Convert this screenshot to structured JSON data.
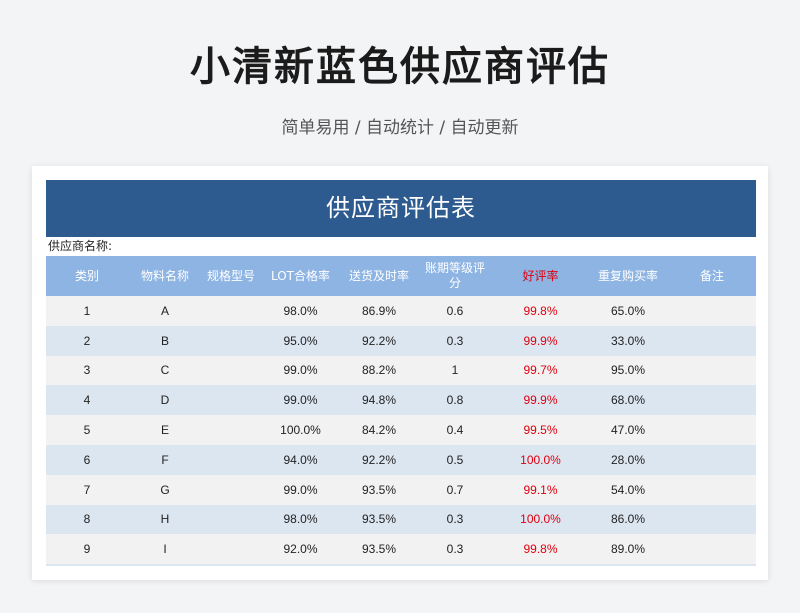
{
  "page": {
    "title": "小清新蓝色供应商评估",
    "subtitle": "简单易用 / 自动统计 / 自动更新"
  },
  "sheet": {
    "title": "供应商评估表",
    "supplier_label": "供应商名称:",
    "header_color": "#2d5a8f",
    "column_header_color": "#8eb4e3",
    "highlight_color": "#e0000f",
    "columns": [
      "类别",
      "物料名称",
      "规格型号",
      "LOT合格率",
      "送货及时率",
      "账期等级评分",
      "好评率",
      "重复购买率",
      "备注"
    ],
    "rows": [
      [
        "1",
        "A",
        "",
        "98.0%",
        "86.9%",
        "0.6",
        "99.8%",
        "65.0%",
        ""
      ],
      [
        "2",
        "B",
        "",
        "95.0%",
        "92.2%",
        "0.3",
        "99.9%",
        "33.0%",
        ""
      ],
      [
        "3",
        "C",
        "",
        "99.0%",
        "88.2%",
        "1",
        "99.7%",
        "95.0%",
        ""
      ],
      [
        "4",
        "D",
        "",
        "99.0%",
        "94.8%",
        "0.8",
        "99.9%",
        "68.0%",
        ""
      ],
      [
        "5",
        "E",
        "",
        "100.0%",
        "84.2%",
        "0.4",
        "99.5%",
        "47.0%",
        ""
      ],
      [
        "6",
        "F",
        "",
        "94.0%",
        "92.2%",
        "0.5",
        "100.0%",
        "28.0%",
        ""
      ],
      [
        "7",
        "G",
        "",
        "99.0%",
        "93.5%",
        "0.7",
        "99.1%",
        "54.0%",
        ""
      ],
      [
        "8",
        "H",
        "",
        "98.0%",
        "93.5%",
        "0.3",
        "100.0%",
        "86.0%",
        ""
      ],
      [
        "9",
        "I",
        "",
        "92.0%",
        "93.5%",
        "0.3",
        "99.8%",
        "89.0%",
        ""
      ]
    ]
  }
}
